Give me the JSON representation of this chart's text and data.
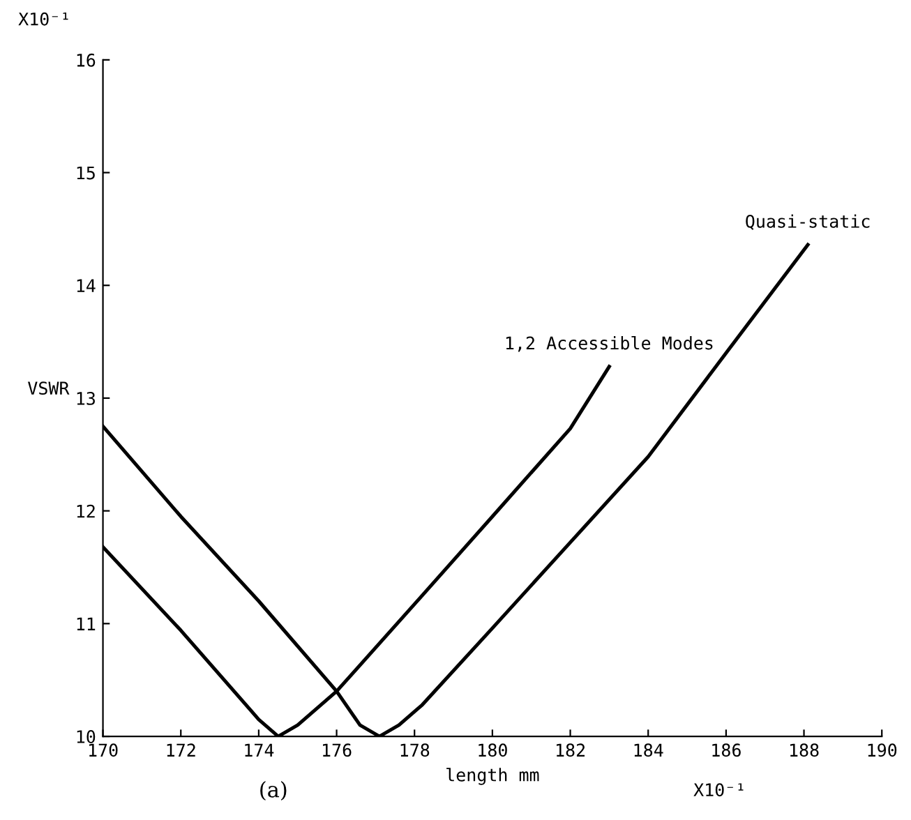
{
  "chart_data": {
    "type": "line",
    "xlabel": "length mm",
    "ylabel": "VSWR",
    "xlim": [
      170,
      190
    ],
    "xticks": [
      170,
      172,
      174,
      176,
      178,
      180,
      182,
      184,
      186,
      188,
      190
    ],
    "ylim": [
      10,
      16
    ],
    "yticks": [
      10,
      11,
      12,
      13,
      14,
      15,
      16
    ],
    "series": [
      {
        "name": "Quasi-static",
        "color": "#000000",
        "x": [
          170,
          172,
          174,
          176,
          176.6,
          177.1,
          177.6,
          178.2,
          180,
          182,
          184,
          186,
          188.1
        ],
        "values": [
          12.75,
          11.95,
          11.2,
          10.4,
          10.1,
          10.0,
          10.1,
          10.28,
          10.96,
          11.72,
          12.48,
          13.4,
          14.36
        ]
      },
      {
        "name": "1,2 Accessible Modes",
        "color": "#000000",
        "x": [
          170,
          172,
          174,
          174.5,
          175,
          176,
          178.2,
          180,
          182,
          183
        ],
        "values": [
          11.68,
          10.94,
          10.15,
          10.0,
          10.1,
          10.4,
          11.25,
          11.95,
          12.73,
          13.28
        ]
      }
    ],
    "annotations": [
      "X10⁻¹",
      "X10⁻¹",
      "(a)"
    ],
    "grid": false,
    "legend": false,
    "marker": "none",
    "line_style": "solid"
  }
}
